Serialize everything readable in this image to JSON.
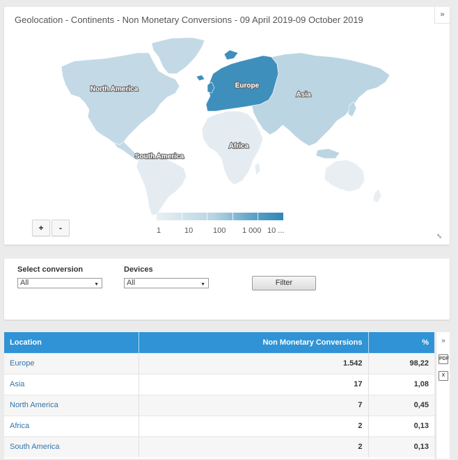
{
  "map": {
    "title": "Geolocation - Continents - Non Monetary Conversions - 09 April 2019-09 October 2019",
    "expand_glyph": "»",
    "fullscreen_glyph": "⇔",
    "zoom_in_label": "+",
    "zoom_out_label": "-",
    "regions": [
      {
        "name": "North America",
        "label": "North America",
        "color": "#c3dae6"
      },
      {
        "name": "Europe",
        "label": "Europe",
        "color": "#3f8fbd"
      },
      {
        "name": "Asia",
        "label": "Asia",
        "color": "#bcd5e3"
      },
      {
        "name": "Africa",
        "label": "Africa",
        "color": "#e4ecf1"
      },
      {
        "name": "South America",
        "label": "South America",
        "color": "#e4ecf1"
      },
      {
        "name": "Oceania",
        "label": "",
        "color": "#e8eef2"
      }
    ],
    "legend": {
      "labels": [
        "1",
        "10",
        "100",
        "1 000",
        "10 ..."
      ],
      "color_low": "#e8f0f4",
      "color_high": "#2d87b6"
    }
  },
  "filters": {
    "conversion_label": "Select conversion",
    "conversion_value": "All",
    "devices_label": "Devices",
    "devices_value": "All",
    "filter_button": "Filter"
  },
  "table": {
    "headers": [
      "Location",
      "Non Monetary Conversions",
      "%"
    ],
    "rows": [
      {
        "location": "Europe",
        "conversions": "1.542",
        "percent": "98,22"
      },
      {
        "location": "Asia",
        "conversions": "17",
        "percent": "1,08"
      },
      {
        "location": "North America",
        "conversions": "7",
        "percent": "0,45"
      },
      {
        "location": "Africa",
        "conversions": "2",
        "percent": "0,13"
      },
      {
        "location": "South America",
        "conversions": "2",
        "percent": "0,13"
      }
    ],
    "side_tools": {
      "expand": "»",
      "pdf": "PDF",
      "xls": "X"
    },
    "header_color": "#2f93d6",
    "link_color": "#3274a8"
  }
}
